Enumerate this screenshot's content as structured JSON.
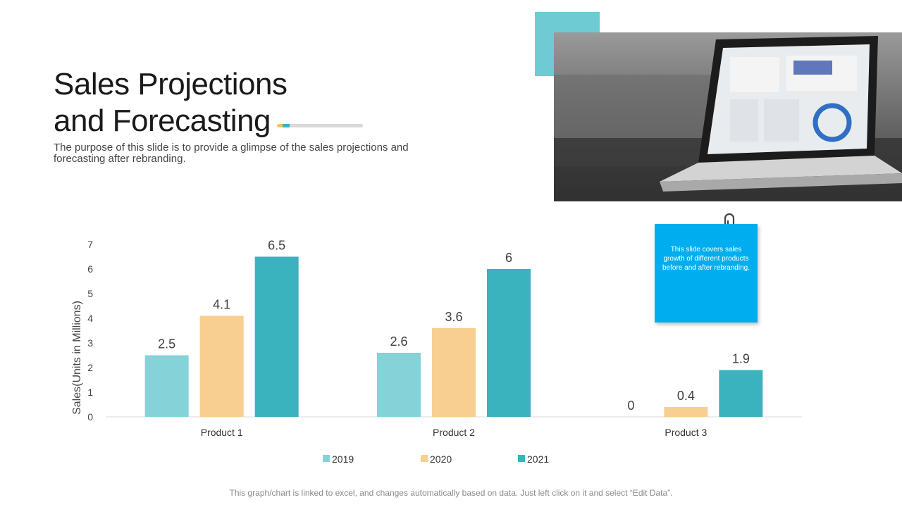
{
  "slide": {
    "title_line1": "Sales Projections",
    "title_line2": "and Forecasting",
    "subtitle": "The purpose of this slide is to provide a glimpse of the sales projections and forecasting after rebranding.",
    "note_text": "This slide covers sales growth of different products before and after rebranding.",
    "footer": "This graph/chart is linked to excel, and changes automatically based on data. Just left click on it and select “Edit Data”.",
    "colors": {
      "accent_teal": "#3bb3be",
      "light_teal": "#85d3d9",
      "peach": "#f8cf91",
      "note_blue": "#00aeef"
    }
  },
  "chart_data": {
    "type": "bar",
    "categories": [
      "Product 1",
      "Product 2",
      "Product 3"
    ],
    "series": [
      {
        "name": "2019",
        "values": [
          2.5,
          2.6,
          0
        ],
        "color": "#85d3d9"
      },
      {
        "name": "2020",
        "values": [
          4.1,
          3.6,
          0.4
        ],
        "color": "#f8cf91"
      },
      {
        "name": "2021",
        "values": [
          6.5,
          6,
          1.9
        ],
        "color": "#3bb3be"
      }
    ],
    "ylabel": "Sales(Units in Millions)",
    "ylim": [
      0,
      7
    ],
    "yticks": [
      "0",
      "1",
      "2",
      "3",
      "4",
      "5",
      "6",
      "7"
    ],
    "grid": false,
    "legend": "bottom"
  }
}
